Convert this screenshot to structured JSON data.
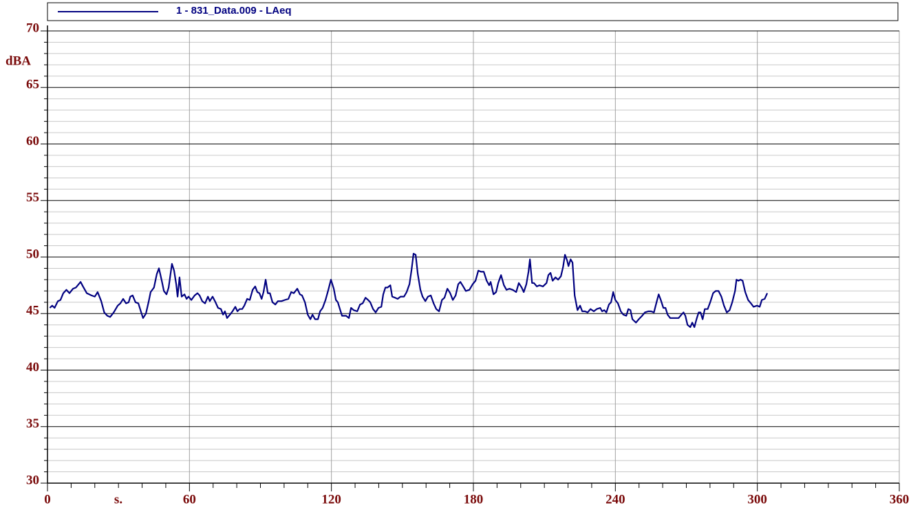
{
  "chart_data": {
    "type": "line",
    "legend": "1 - 831_Data.009 - LAeq",
    "y_label": "dBA",
    "x_label": "s.",
    "xlim": [
      0,
      360
    ],
    "ylim": [
      30,
      70
    ],
    "xticks": [
      0,
      60,
      120,
      180,
      240,
      300,
      360
    ],
    "xminorticks": [
      10,
      20,
      30,
      40,
      50,
      70,
      80,
      90,
      100,
      110,
      130,
      140,
      150,
      160,
      170,
      190,
      200,
      210,
      220,
      230,
      250,
      260,
      270,
      280,
      290,
      310,
      320,
      330,
      340,
      350
    ],
    "yticks": [
      30,
      35,
      40,
      45,
      50,
      55,
      60,
      65,
      70
    ],
    "yminorticks": [
      31,
      32,
      33,
      34,
      36,
      37,
      38,
      39,
      41,
      42,
      43,
      44,
      46,
      47,
      48,
      49,
      51,
      52,
      53,
      54,
      56,
      57,
      58,
      59,
      61,
      62,
      63,
      64,
      66,
      67,
      68,
      69
    ],
    "grid": true,
    "series": [
      {
        "name": "1 - 831_Data.009 - LAeq",
        "color": "#000080",
        "x": [
          1,
          2,
          3,
          4.4,
          5.5,
          6.7,
          8,
          9.3,
          10.8,
          12,
          14,
          15,
          16.6,
          18.6,
          20,
          21.2,
          22.7,
          24,
          25.3,
          26.5,
          28,
          29.7,
          30.8,
          32,
          33.2,
          34.3,
          35,
          36,
          37.2,
          38.4,
          39.6,
          40.4,
          41.6,
          42.8,
          43.6,
          45,
          46.2,
          47.1,
          48.3,
          49.2,
          50.3,
          51.2,
          52.6,
          53.5,
          54.4,
          55,
          55.8,
          56.7,
          57.9,
          58.8,
          59.6,
          60.8,
          62.2,
          63.4,
          64.3,
          65.4,
          66.6,
          67.8,
          68.6,
          69.8,
          71,
          72.1,
          73.3,
          74.2,
          75,
          75.9,
          77.1,
          78.2,
          79.4,
          80.3,
          81.2,
          82.3,
          83.2,
          84.4,
          85.5,
          86.7,
          87.8,
          88.7,
          89.6,
          90.5,
          91.3,
          92.2,
          93.1,
          94,
          95.1,
          96.3,
          97.4,
          98.9,
          100.3,
          101.8,
          103,
          104.1,
          105.6,
          106.7,
          107.6,
          108.8,
          110,
          111.1,
          112,
          113.1,
          114.3,
          115.2,
          116.3,
          117.5,
          118.7,
          119.8,
          121,
          121.9,
          122.7,
          123.6,
          124.5,
          126.2,
          127.4,
          128.3,
          129.4,
          130.9,
          132.1,
          133.2,
          134.4,
          135.5,
          136.4,
          137.6,
          138.7,
          139.9,
          141.1,
          141.9,
          142.8,
          143.7,
          144.9,
          145.7,
          146.9,
          148,
          149.2,
          150.7,
          151.8,
          153,
          153.9,
          154.7,
          155.6,
          156.5,
          157.6,
          158.5,
          159.7,
          160.8,
          162,
          163.2,
          164.3,
          165.5,
          166.7,
          167.8,
          169,
          170.2,
          171.3,
          172.5,
          173.6,
          174.5,
          175.7,
          176.8,
          178.3,
          179.7,
          180.9,
          182.1,
          183.2,
          184.4,
          185.6,
          186.7,
          187.3,
          188.5,
          189.6,
          190.5,
          191.7,
          192.9,
          194,
          195.2,
          196.6,
          198.1,
          199.2,
          200.4,
          201.3,
          202.4,
          203.3,
          203.9,
          204.8,
          205.6,
          206.8,
          207.9,
          209.4,
          210.9,
          211.7,
          212.6,
          213.5,
          214.7,
          215.8,
          217,
          217.9,
          218.7,
          219.6,
          220.2,
          221.1,
          221.9,
          222.8,
          224,
          225.1,
          226,
          227.2,
          228.3,
          229.5,
          230.9,
          232.1,
          233.6,
          234.4,
          235.3,
          236.2,
          237.3,
          238.2,
          239.1,
          240,
          241.1,
          242.3,
          243.4,
          244.6,
          245.5,
          246.4,
          247.2,
          248.7,
          249.9,
          251.3,
          252.5,
          253.9,
          255.1,
          256.3,
          257.4,
          258.3,
          259.2,
          260.3,
          261.2,
          262.1,
          263.2,
          264.4,
          265.6,
          266.7,
          267.9,
          268.8,
          269.6,
          270.5,
          271.7,
          272.5,
          273.4,
          274.3,
          275.2,
          276,
          276.9,
          277.8,
          279,
          280.1,
          281.3,
          282.4,
          283.6,
          284.8,
          285.9,
          287.1,
          288.3,
          289.4,
          290.6,
          291.2,
          292,
          292.9,
          293.8,
          294.9,
          296.1,
          297.3,
          298.4,
          299.9,
          301,
          301.9,
          303.1,
          304.2
        ],
        "values": [
          45.5,
          45.7,
          45.5,
          46.1,
          46.2,
          46.8,
          47.1,
          46.8,
          47.2,
          47.3,
          47.8,
          47.4,
          46.8,
          46.6,
          46.5,
          46.9,
          46.1,
          45.1,
          44.8,
          44.7,
          45.1,
          45.7,
          45.9,
          46.3,
          45.9,
          46,
          46.5,
          46.6,
          46,
          45.9,
          45.1,
          44.6,
          45,
          46.1,
          46.9,
          47.3,
          48.5,
          49,
          47.9,
          47,
          46.7,
          47.3,
          49.4,
          48.8,
          47.6,
          46.5,
          48.2,
          46.5,
          46.7,
          46.3,
          46.5,
          46.2,
          46.6,
          46.8,
          46.6,
          46.1,
          45.9,
          46.5,
          46.1,
          46.5,
          46,
          45.5,
          45.4,
          44.9,
          45.2,
          44.6,
          44.9,
          45.2,
          45.6,
          45.2,
          45.4,
          45.4,
          45.7,
          46.3,
          46.2,
          47.1,
          47.4,
          46.9,
          46.8,
          46.3,
          46.9,
          48,
          46.8,
          46.8,
          46,
          45.8,
          46.1,
          46.1,
          46.2,
          46.3,
          46.9,
          46.8,
          47.2,
          46.7,
          46.6,
          46,
          44.9,
          44.5,
          44.9,
          44.5,
          44.5,
          45.2,
          45.5,
          46.2,
          47.1,
          48,
          47.2,
          46.2,
          46,
          45.4,
          44.8,
          44.8,
          44.6,
          45.5,
          45.3,
          45.2,
          45.8,
          45.9,
          46.4,
          46.2,
          46,
          45.4,
          45.1,
          45.5,
          45.6,
          46.7,
          47.3,
          47.3,
          47.5,
          46.5,
          46.4,
          46.3,
          46.5,
          46.5,
          46.9,
          47.6,
          48.9,
          50.3,
          50.2,
          48.5,
          47.1,
          46.5,
          46.1,
          46.5,
          46.6,
          45.9,
          45.4,
          45.2,
          46.2,
          46.4,
          47.2,
          46.8,
          46.2,
          46.6,
          47.6,
          47.8,
          47.4,
          47,
          47.1,
          47.6,
          47.9,
          48.8,
          48.7,
          48.7,
          47.9,
          47.5,
          47.8,
          46.7,
          46.9,
          47.7,
          48.4,
          47.5,
          47.1,
          47.2,
          47.1,
          46.9,
          47.7,
          47.3,
          46.9,
          47.6,
          48.7,
          49.8,
          47.7,
          47.7,
          47.4,
          47.5,
          47.4,
          47.7,
          48.4,
          48.6,
          47.9,
          48.2,
          48,
          48.3,
          49.1,
          50.2,
          49.7,
          49.2,
          49.8,
          49.5,
          46.6,
          45.3,
          45.7,
          45.2,
          45.2,
          45.1,
          45.4,
          45.2,
          45.4,
          45.5,
          45.2,
          45.3,
          45.1,
          45.8,
          46,
          46.9,
          46.2,
          45.9,
          45.2,
          44.9,
          44.8,
          45.4,
          45.3,
          44.5,
          44.2,
          44.5,
          44.8,
          45.1,
          45.2,
          45.2,
          45.1,
          46,
          46.7,
          46.2,
          45.5,
          45.5,
          44.9,
          44.6,
          44.6,
          44.6,
          44.6,
          44.9,
          45.1,
          44.8,
          44,
          43.8,
          44.2,
          43.8,
          44.5,
          45.1,
          45.1,
          44.5,
          45.4,
          45.4,
          46,
          46.8,
          47,
          47,
          46.5,
          45.7,
          45.1,
          45.3,
          46,
          47,
          48,
          47.9,
          48,
          47.9,
          46.9,
          46.2,
          45.9,
          45.6,
          45.7,
          45.6,
          46.2,
          46.3,
          46.8
        ]
      }
    ]
  }
}
